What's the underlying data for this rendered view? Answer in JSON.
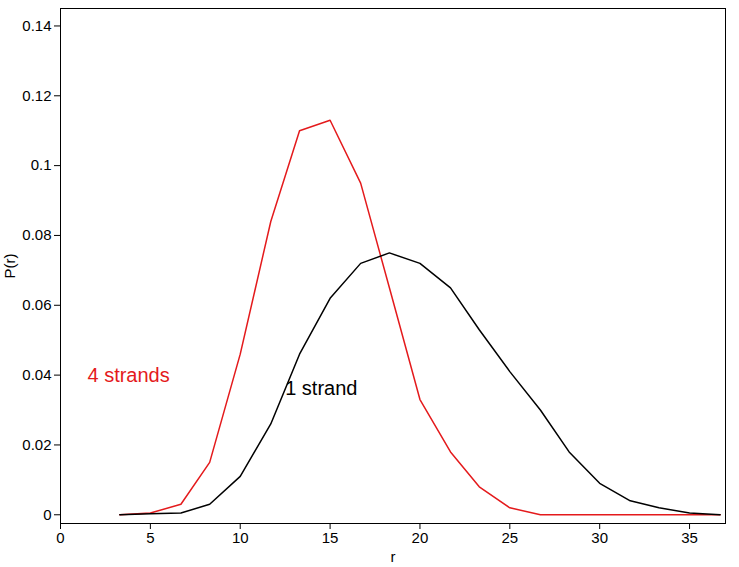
{
  "chart_data": {
    "type": "line",
    "x_label": "r",
    "y_label": "P(r)",
    "x": [
      3.3,
      5,
      6.7,
      8.3,
      10,
      11.7,
      13.3,
      15,
      16.7,
      18.3,
      20,
      21.7,
      23.3,
      25,
      26.7,
      28.3,
      30,
      31.7,
      33.3,
      35,
      36.7
    ],
    "series": [
      {
        "name": "4 strands",
        "color": "#e41a1c",
        "values": [
          0,
          0.0005,
          0.003,
          0.015,
          0.046,
          0.084,
          0.11,
          0.113,
          0.095,
          0.065,
          0.033,
          0.018,
          0.008,
          0.002,
          0,
          0,
          0,
          0,
          0,
          0,
          0
        ]
      },
      {
        "name": "1 strand",
        "color": "#000000",
        "values": [
          0,
          0.0003,
          0.0005,
          0.003,
          0.011,
          0.026,
          0.046,
          0.062,
          0.072,
          0.075,
          0.072,
          0.065,
          0.053,
          0.041,
          0.03,
          0.018,
          0.009,
          0.004,
          0.002,
          0.0005,
          0
        ]
      }
    ],
    "annotations": [
      {
        "text": "4 strands",
        "x": 1.5,
        "y": 0.04,
        "color": "#e41a1c"
      },
      {
        "text": "1 strand",
        "x": 12.5,
        "y": 0.036,
        "color": "#000000"
      }
    ],
    "xlim": [
      0,
      37
    ],
    "xticks": [
      0,
      5,
      10,
      15,
      20,
      25,
      30,
      35
    ],
    "ylim": [
      -0.0025,
      0.145
    ],
    "yticks": [
      0,
      0.02,
      0.04,
      0.06,
      0.08,
      0.1,
      0.12,
      0.14
    ],
    "grid": false
  }
}
